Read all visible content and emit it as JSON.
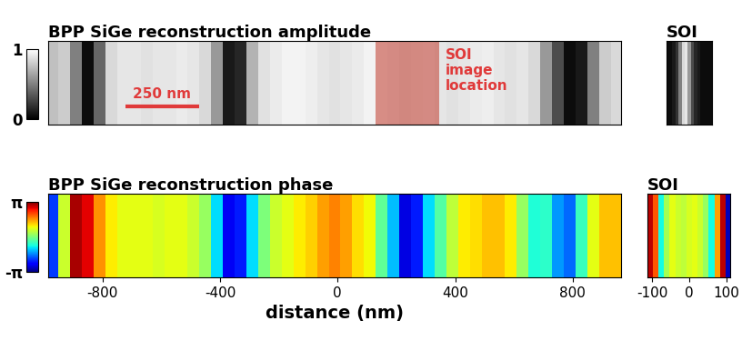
{
  "chart_data": [
    {
      "type": "heatmap",
      "title": "BPP SiGe reconstruction amplitude",
      "x": [
        -970,
        -930,
        -890,
        -850,
        -810,
        -770,
        -730,
        -690,
        -650,
        -610,
        -570,
        -530,
        -490,
        -450,
        -410,
        -370,
        -330,
        -290,
        -250,
        -210,
        -170,
        -130,
        -90,
        -50,
        -10,
        30,
        70,
        110,
        150,
        190,
        230,
        270,
        310,
        350,
        390,
        430,
        470,
        510,
        550,
        590,
        630,
        670,
        710,
        750,
        790,
        830,
        870,
        910,
        950
      ],
      "values": [
        0.75,
        0.8,
        0.5,
        0.05,
        0.4,
        0.85,
        0.9,
        0.9,
        0.88,
        0.9,
        0.9,
        0.92,
        0.9,
        0.85,
        0.6,
        0.1,
        0.15,
        0.7,
        0.88,
        0.92,
        0.95,
        0.95,
        0.93,
        0.9,
        0.88,
        0.9,
        0.92,
        0.95,
        0.95,
        0.93,
        0.9,
        0.92,
        0.93,
        0.9,
        0.88,
        0.9,
        0.92,
        0.93,
        0.9,
        0.88,
        0.9,
        0.85,
        0.6,
        0.3,
        0.05,
        0.1,
        0.5,
        0.8,
        0.85
      ],
      "xlim": [
        -985,
        965
      ],
      "tick_labels": false,
      "colorbar_range": [
        0,
        1
      ],
      "colorbar_ticks": [
        0,
        1
      ],
      "annotations": [
        {
          "text": "250 nm",
          "length": 250
        },
        {
          "text": "SOI\nimage\nlocation",
          "range": [
            130,
            347
          ]
        }
      ]
    },
    {
      "type": "heatmap",
      "title": "SOI",
      "x": [
        -105,
        -90,
        -75,
        -60,
        -45,
        -30,
        -15,
        0,
        15,
        30,
        45,
        60,
        75,
        90,
        105
      ],
      "values": [
        0.05,
        0.05,
        0.1,
        0.2,
        0.5,
        0.85,
        0.9,
        0.6,
        0.3,
        0.15,
        0.1,
        0.05,
        0.05,
        0.05,
        0.05
      ],
      "xlim": [
        -112,
        110
      ],
      "tick_labels": false,
      "colorbar_range": [
        0,
        1
      ]
    },
    {
      "type": "heatmap",
      "title": "BPP SiGe reconstruction phase",
      "xlabel": "distance (nm)",
      "x": [
        -970,
        -930,
        -890,
        -850,
        -810,
        -770,
        -730,
        -690,
        -650,
        -610,
        -570,
        -530,
        -490,
        -450,
        -410,
        -370,
        -330,
        -290,
        -250,
        -210,
        -170,
        -130,
        -90,
        -50,
        -10,
        30,
        70,
        110,
        150,
        190,
        230,
        270,
        310,
        350,
        390,
        430,
        470,
        510,
        550,
        590,
        630,
        670,
        710,
        750,
        790,
        830,
        870,
        910,
        950
      ],
      "values": [
        -2.0,
        0.6,
        2.9,
        2.6,
        1.6,
        1.0,
        0.8,
        0.8,
        0.8,
        0.7,
        0.8,
        0.8,
        0.6,
        0.2,
        -1.0,
        -2.5,
        -2.2,
        -1.0,
        0.0,
        0.6,
        0.8,
        1.0,
        1.2,
        1.5,
        1.7,
        1.5,
        1.1,
        0.9,
        -0.2,
        -1.2,
        -2.6,
        -2.2,
        -1.0,
        -0.3,
        0.5,
        1.0,
        1.1,
        1.3,
        1.3,
        1.0,
        0.2,
        -0.7,
        -0.6,
        -1.4,
        -1.7,
        -0.5,
        0.8,
        1.3,
        1.3
      ],
      "xlim": [
        -985,
        965
      ],
      "xticks": [
        -800,
        -400,
        0,
        400,
        800
      ],
      "tick_labels": "x",
      "colorbar_range": [
        -3.14159,
        3.14159
      ],
      "colorbar_ticks": [
        {
          "value": -3.14159,
          "label": "-π"
        },
        {
          "value": 3.14159,
          "label": "π"
        }
      ]
    },
    {
      "type": "heatmap",
      "title": "SOI",
      "x": [
        -105,
        -90,
        -75,
        -60,
        -45,
        -30,
        -15,
        0,
        15,
        30,
        45,
        60,
        75,
        90,
        105
      ],
      "values": [
        2.8,
        2.0,
        -0.8,
        0.3,
        0.8,
        0.6,
        0.5,
        0.7,
        0.8,
        0.6,
        0.2,
        -0.8,
        1.5,
        2.8,
        -2.8
      ],
      "xlim": [
        -112,
        110
      ],
      "xticks": [
        -100,
        0,
        100
      ],
      "tick_labels": "x",
      "colorbar_range": [
        -3.14159,
        3.14159
      ]
    }
  ]
}
